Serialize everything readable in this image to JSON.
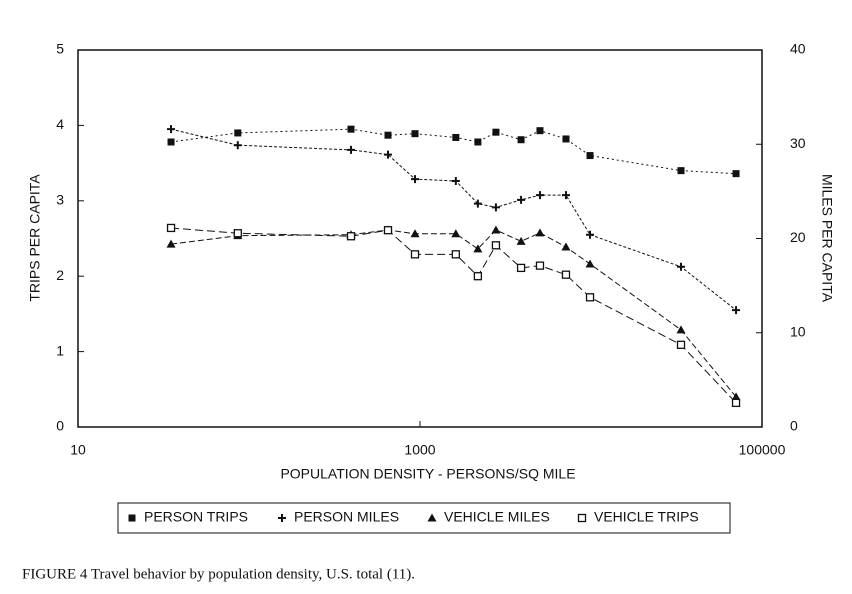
{
  "chart_data": {
    "type": "line",
    "caption": "FIGURE 4   Travel behavior by population density, U.S. total (11).",
    "x_label": "POPULATION DENSITY - PERSONS/SQ MILE",
    "y_label": "TRIPS PER CAPITA",
    "y2_label": "MILES PER CAPITA",
    "xscale": "log",
    "xlim": [
      10,
      100000
    ],
    "xticks": [
      10,
      1000,
      100000
    ],
    "ylim": [
      0,
      5
    ],
    "yticks": [
      0,
      1,
      2,
      3,
      4,
      5
    ],
    "y2lim": [
      0,
      40
    ],
    "y2ticks": [
      0,
      10,
      20,
      30,
      40
    ],
    "x": [
      35,
      86,
      395,
      650,
      935,
      1620,
      2180,
      2780,
      3900,
      5030,
      7140,
      9870,
      33600,
      70500
    ],
    "series": [
      {
        "name": "PERSON TRIPS",
        "color": "#111111",
        "marker": "square",
        "dash": "2,3",
        "values": [
          3.78,
          3.9,
          3.95,
          3.87,
          3.89,
          3.84,
          3.78,
          3.91,
          3.81,
          3.93,
          3.82,
          3.6,
          3.4,
          3.36
        ]
      },
      {
        "name": "PERSON MILES",
        "color": "#111111",
        "marker": "plus",
        "dash": "3,2",
        "axis": "y2",
        "values": [
          31.6,
          29.9,
          29.4,
          28.9,
          26.3,
          26.1,
          23.7,
          23.3,
          24.1,
          24.6,
          24.6,
          20.4,
          17.0,
          12.4
        ]
      },
      {
        "name": "VEHICLE MILES",
        "color": "#111111",
        "marker": "triangle",
        "dash": "6,3",
        "axis": "y2",
        "values": [
          19.4,
          20.3,
          20.4,
          20.9,
          20.5,
          20.5,
          18.9,
          20.9,
          19.7,
          20.6,
          19.1,
          17.3,
          10.3,
          3.2
        ]
      },
      {
        "name": "VEHICLE TRIPS",
        "color": "#111111",
        "marker": "open-square",
        "dash": "8,4",
        "values": [
          2.64,
          2.57,
          2.53,
          2.61,
          2.29,
          2.29,
          2.0,
          2.41,
          2.11,
          2.14,
          2.02,
          1.72,
          1.09,
          0.32
        ]
      }
    ]
  }
}
